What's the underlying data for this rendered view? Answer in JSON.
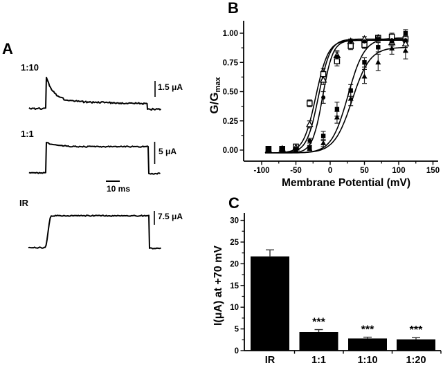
{
  "panel_a": {
    "label": "A",
    "traces": [
      {
        "label": "1:10",
        "scale_label": "1.5 μA",
        "shape": "decaying-step"
      },
      {
        "label": "1:1",
        "scale_label": "5 μA",
        "shape": "flat-step"
      },
      {
        "label": "IR",
        "scale_label": "7.5 μA",
        "shape": "slow-rise-step"
      }
    ],
    "time_scale_label": "10 ms"
  },
  "panel_b": {
    "label": "B",
    "ylabel_main": "G/G",
    "ylabel_sub": "max",
    "xlabel": "Membrane Potential (mV)",
    "x_tick_labels": [
      "-100",
      "-50",
      "0",
      "50",
      "100",
      "150"
    ],
    "y_tick_labels": [
      "0.00",
      "0.25",
      "0.50",
      "0.75",
      "1.00"
    ]
  },
  "panel_c": {
    "label": "C",
    "ylabel": "I(μA) at +70 mV",
    "y_tick_labels": [
      "0",
      "5",
      "10",
      "15",
      "20",
      "25",
      "30"
    ],
    "categories": [
      "IR",
      "1:1",
      "1:10",
      "1:20"
    ]
  },
  "colors": {
    "ink": "#000000",
    "paper": "#ffffff"
  },
  "chart_data": [
    {
      "panel": "B",
      "type": "scatter",
      "title": "",
      "xlabel": "Membrane Potential (mV)",
      "ylabel": "G/Gmax",
      "xlim": [
        -125,
        150
      ],
      "ylim": [
        -0.1,
        1.1
      ],
      "x_major_ticks": [
        -100,
        -50,
        0,
        50,
        100,
        150
      ],
      "x_minor_ticks": [
        -75,
        -25,
        25,
        75,
        125
      ],
      "y_major_ticks": [
        0,
        0.25,
        0.5,
        0.75,
        1.0
      ],
      "y_minor_ticks": [
        0.125,
        0.375,
        0.625,
        0.875
      ],
      "grid": false,
      "legend": "none",
      "x": [
        -90,
        -70,
        -50,
        -30,
        -10,
        10,
        30,
        50,
        70,
        90,
        110
      ],
      "series": [
        {
          "name": "open-square",
          "marker": "open-square",
          "values": [
            0.01,
            0.01,
            0.03,
            0.4,
            0.65,
            0.76,
            0.89,
            0.9,
            0.96,
            0.97,
            0.95
          ],
          "errors": [
            0.02,
            0.01,
            0.01,
            0.03,
            0.05,
            0.04,
            0.03,
            0.03,
            0.02,
            0.03,
            0.03
          ],
          "fit": {
            "gmax": 0.94,
            "vhalf": -21,
            "k": 9
          }
        },
        {
          "name": "open-triangle",
          "marker": "open-triangle",
          "values": [
            0.0,
            0.01,
            0.02,
            0.22,
            0.6,
            0.81,
            0.93,
            0.95,
            0.96,
            0.92,
            0.91
          ],
          "errors": [
            0.01,
            0.01,
            0.01,
            0.03,
            0.04,
            0.04,
            0.02,
            0.02,
            0.02,
            0.03,
            0.07
          ],
          "fit": {
            "gmax": 0.95,
            "vhalf": -17,
            "k": 8.5
          }
        },
        {
          "name": "filled-circle",
          "marker": "filled-circle",
          "values": [
            0.0,
            0.0,
            0.01,
            0.08,
            0.45,
            0.8,
            0.93,
            0.93,
            0.95,
            0.94,
            0.94
          ],
          "errors": [
            0.01,
            0.01,
            0.01,
            0.02,
            0.05,
            0.04,
            0.02,
            0.02,
            0.02,
            0.02,
            0.02
          ],
          "fit": {
            "gmax": 0.94,
            "vhalf": -11,
            "k": 7.5
          }
        },
        {
          "name": "filled-square",
          "marker": "filled-square",
          "values": [
            0.01,
            0.01,
            0.0,
            0.02,
            0.12,
            0.35,
            0.51,
            0.75,
            0.88,
            0.93,
            1.0
          ],
          "errors": [
            0.02,
            0.01,
            0.01,
            0.02,
            0.04,
            0.06,
            0.05,
            0.04,
            0.04,
            0.03,
            0.03
          ],
          "fit": {
            "gmax": 0.96,
            "vhalf": 26,
            "k": 12
          }
        },
        {
          "name": "filled-triangle",
          "marker": "filled-triangle",
          "values": [
            0.0,
            0.0,
            0.0,
            0.01,
            0.06,
            0.28,
            0.44,
            0.63,
            0.75,
            0.87,
            0.85
          ],
          "errors": [
            0.01,
            0.01,
            0.01,
            0.01,
            0.03,
            0.05,
            0.06,
            0.06,
            0.07,
            0.05,
            0.07
          ],
          "fit": {
            "gmax": 0.88,
            "vhalf": 32,
            "k": 13
          }
        }
      ]
    },
    {
      "panel": "C",
      "type": "bar",
      "title": "",
      "xlabel": "",
      "ylabel": "I(μA) at +70 mV",
      "ylim": [
        0,
        30
      ],
      "y_major_ticks": [
        0,
        5,
        10,
        15,
        20,
        25,
        30
      ],
      "y_minor_step": 2.5,
      "grid": false,
      "categories": [
        "IR",
        "1:1",
        "1:10",
        "1:20"
      ],
      "values": [
        21.7,
        4.3,
        2.8,
        2.6
      ],
      "errors": [
        1.5,
        0.55,
        0.3,
        0.4
      ],
      "significance": [
        "",
        "***",
        "***",
        "***"
      ],
      "bar_color": "#000000"
    }
  ]
}
